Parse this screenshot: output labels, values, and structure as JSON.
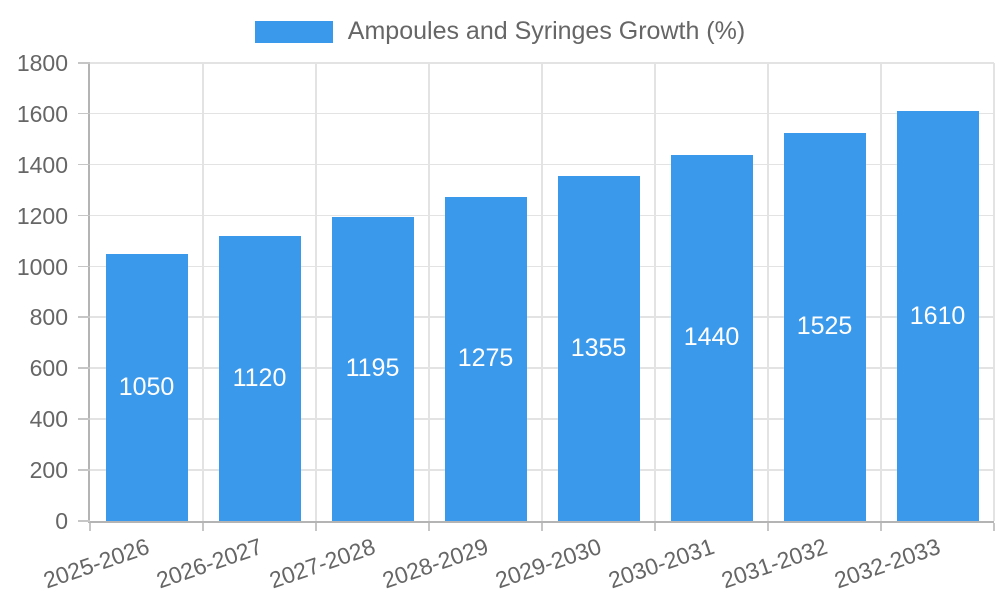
{
  "chart_data": {
    "type": "bar",
    "legend": {
      "position": "top",
      "label": "Ampoules and Syringes Growth (%)"
    },
    "categories": [
      "2025-2026",
      "2026-2027",
      "2027-2028",
      "2028-2029",
      "2029-2030",
      "2030-2031",
      "2031-2032",
      "2032-2033"
    ],
    "series": [
      {
        "name": "Ampoules and Syringes Growth (%)",
        "values": [
          1050,
          1120,
          1195,
          1275,
          1355,
          1440,
          1525,
          1610
        ]
      }
    ],
    "value_labels": [
      "1050",
      "1120",
      "1195",
      "1275",
      "1355",
      "1440",
      "1525",
      "1610"
    ],
    "ylim": [
      0,
      1800
    ],
    "yticks": [
      0,
      200,
      400,
      600,
      800,
      1000,
      1200,
      1400,
      1600,
      1800
    ],
    "grid": true,
    "x_label_rotation_deg": -19,
    "colors": {
      "bar": "#3B99EC",
      "bar_value_text": "#FFFFFF",
      "axis_text": "#666666",
      "grid_line": "#E3E3E3",
      "tick_mark": "#C6C6C6",
      "axis_line": "#B4B4B4",
      "background": "#FFFFFF"
    }
  }
}
